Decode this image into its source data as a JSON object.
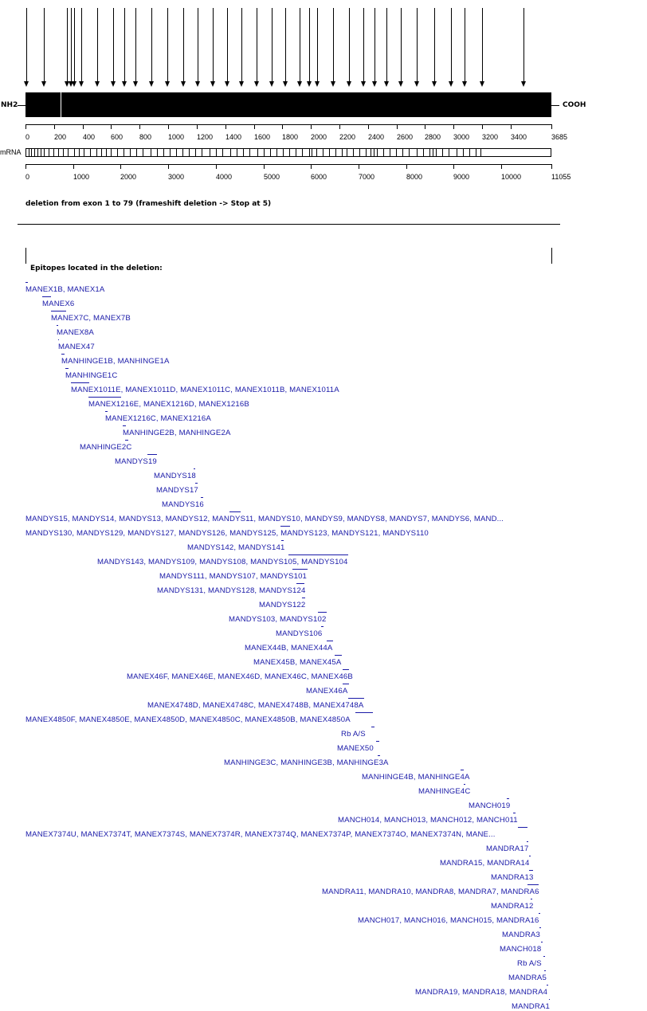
{
  "protein": {
    "n_term_label": "NH2",
    "c_term_label": "COOH",
    "length_aa": 3685,
    "aa_ticks": [
      "0",
      "200",
      "400",
      "600",
      "800",
      "1000",
      "1200",
      "1400",
      "1600",
      "1800",
      "2000",
      "2200",
      "2400",
      "2600",
      "2800",
      "3000",
      "3200",
      "3400"
    ],
    "aa_end_label": "3685"
  },
  "mrna": {
    "label": "mRNA",
    "length_nt": 11055,
    "nt_ticks": [
      "0",
      "1000",
      "2000",
      "3000",
      "4000",
      "5000",
      "6000",
      "7000",
      "8000",
      "9000",
      "10000"
    ],
    "nt_end_label": "11055"
  },
  "deletion_text": "deletion from exon 1 to 79 (frameshift deletion -> Stop at 5)",
  "epitopes_heading": "Epitopes located in the deletion:",
  "colors": {
    "epitope_text": "#1a1aa8",
    "protein_bar": "#000000"
  },
  "epitopes": [
    "MANEX1B, MANEX1A",
    "MANEX6",
    "MANEX7C, MANEX7B",
    "MANEX8A",
    "MANEX47",
    "MANHINGE1B, MANHINGE1A",
    "MANHINGE1C",
    "MANEX1011E, MANEX1011D, MANEX1011C, MANEX1011B, MANEX1011A",
    "MANEX1216E, MANEX1216D, MANEX1216B",
    "MANEX1216C, MANEX1216A",
    "MANHINGE2B, MANHINGE2A",
    "MANHINGE2C",
    "MANDYS19",
    "MANDYS18",
    "MANDYS17",
    "MANDYS16",
    "MANDYS15, MANDYS14, MANDYS13, MANDYS12, MANDYS11, MANDYS10, MANDYS9, MANDYS8, MANDYS7, MANDYS6, MAND...",
    "MANDYS130, MANDYS129, MANDYS127, MANDYS126, MANDYS125, MANDYS123, MANDYS121, MANDYS110",
    "MANDYS142, MANDYS141",
    "MANDYS143, MANDYS109, MANDYS108, MANDYS105, MANDYS104",
    "MANDYS111, MANDYS107, MANDYS101",
    "MANDYS131, MANDYS128, MANDYS124",
    "MANDYS122",
    "MANDYS103, MANDYS102",
    "MANDYS106",
    "MANEX44B, MANEX44A",
    "MANEX45B, MANEX45A",
    "MANEX46F, MANEX46E, MANEX46D, MANEX46C, MANEX46B",
    "MANEX46A",
    "MANEX4748D, MANEX4748C, MANEX4748B, MANEX4748A",
    "MANEX4850F, MANEX4850E, MANEX4850D, MANEX4850C, MANEX4850B, MANEX4850A",
    "Rb A/S",
    "MANEX50",
    "MANHINGE3C, MANHINGE3B, MANHINGE3A",
    "MANHINGE4B, MANHINGE4A",
    "MANHINGE4C",
    "MANCH019",
    "MANCH014, MANCH013, MANCH012, MANCH011",
    "MANEX7374U, MANEX7374T, MANEX7374S, MANEX7374R, MANEX7374Q, MANEX7374P, MANEX7374O, MANEX7374N, MANE...",
    "MANDRA17",
    "MANDRA15, MANDRA14",
    "MANDRA13",
    "MANDRA11, MANDRA10, MANDRA8, MANDRA7, MANDRA6",
    "MANDRA12",
    "MANCH017, MANCH016, MANCH015, MANDRA16",
    "MANDRA3",
    "MANCH018",
    "Rb A/S",
    "MANDRA5",
    "MANDRA19, MANDRA18, MANDRA4",
    "MANDRA1"
  ]
}
